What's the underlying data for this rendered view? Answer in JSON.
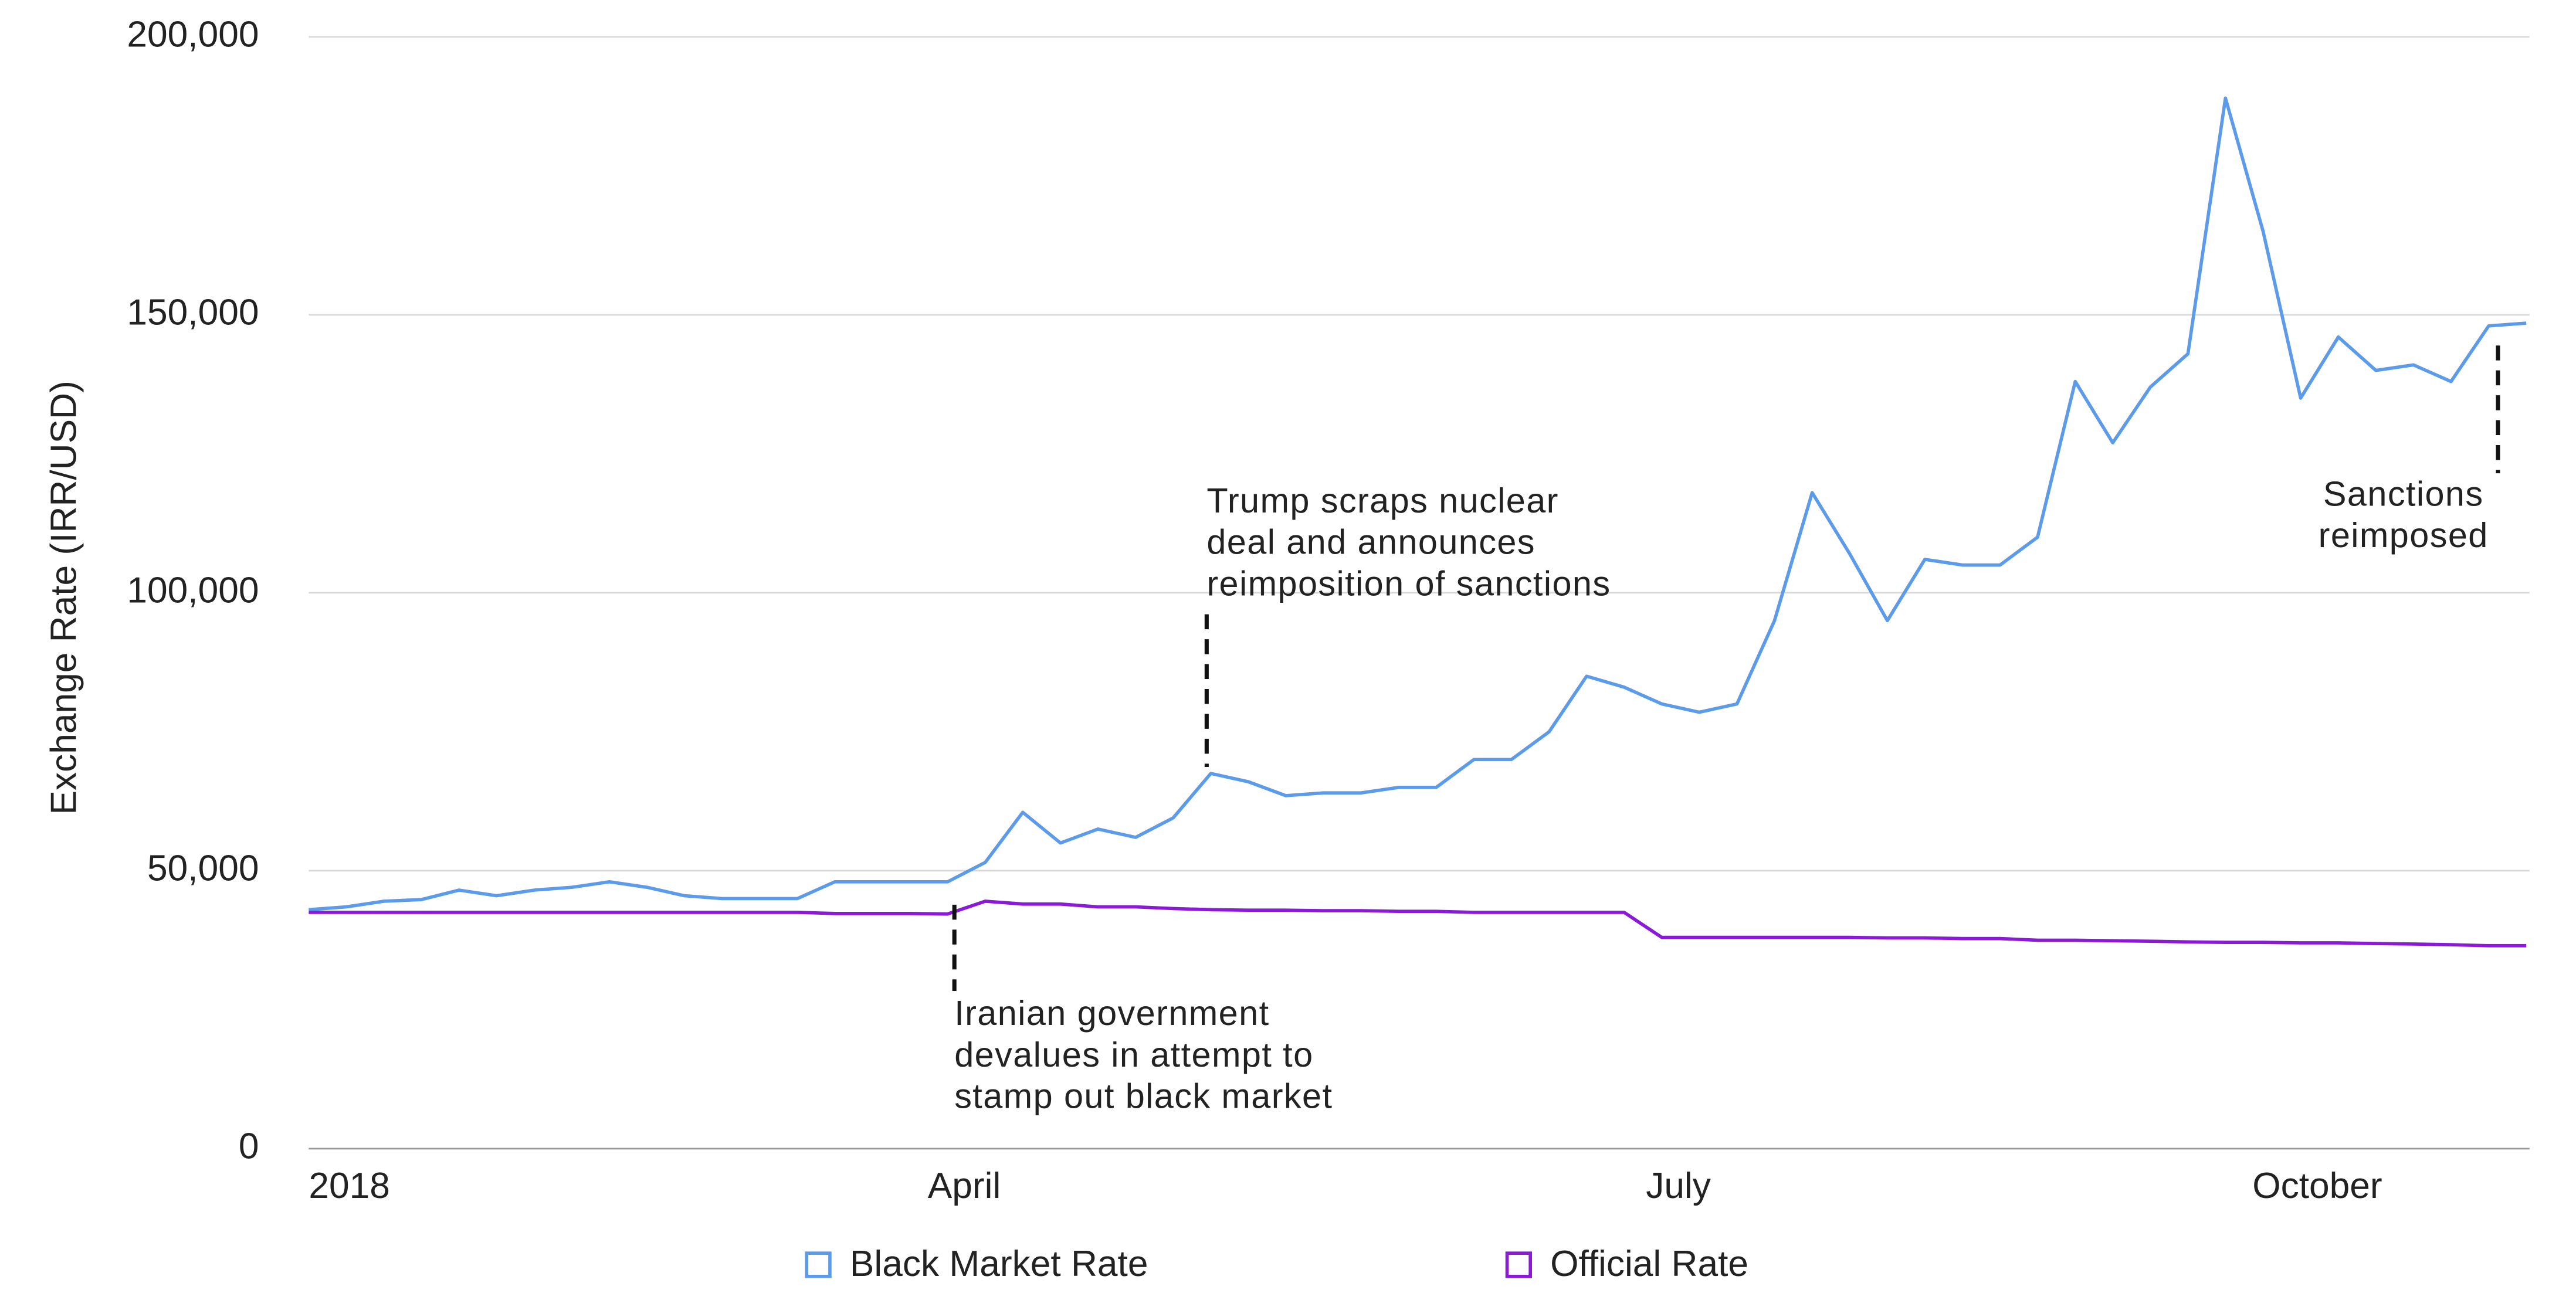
{
  "chart_data": {
    "type": "line",
    "y_label": "Exchange Rate (IRR/USD)",
    "categories": [
      "2018",
      null,
      null,
      null,
      null,
      null,
      null,
      null,
      null,
      null,
      null,
      null,
      null,
      null,
      null,
      null,
      null,
      "April",
      null,
      null,
      null,
      null,
      null,
      null,
      null,
      null,
      null,
      null,
      null,
      null,
      null,
      null,
      null,
      null,
      null,
      null,
      "July",
      null,
      null,
      null,
      null,
      null,
      null,
      null,
      null,
      null,
      null,
      null,
      null,
      null,
      null,
      null,
      null,
      "October",
      null,
      null,
      null,
      null,
      null,
      null
    ],
    "series": [
      {
        "name": "Black Market Rate",
        "color": "#5b9bea",
        "values": [
          43000,
          43500,
          44500,
          44800,
          46500,
          45500,
          46500,
          47000,
          48000,
          47000,
          45500,
          45000,
          45000,
          45000,
          48000,
          48000,
          48000,
          48000,
          51500,
          60500,
          55000,
          57500,
          56000,
          59500,
          67500,
          66000,
          63500,
          64000,
          64000,
          65000,
          65000,
          70000,
          70000,
          75000,
          85000,
          83000,
          80000,
          78500,
          80000,
          95000,
          118000,
          107000,
          95000,
          106000,
          105000,
          105000,
          110000,
          138000,
          127000,
          137000,
          143000,
          189000,
          165000,
          135000,
          146000,
          140000,
          141000,
          138000,
          148000,
          148500
        ]
      },
      {
        "name": "Official Rate",
        "color": "#8a1ad6",
        "values": [
          42500,
          42500,
          42500,
          42500,
          42500,
          42500,
          42500,
          42500,
          42500,
          42500,
          42500,
          42500,
          42500,
          42500,
          42300,
          42300,
          42300,
          42200,
          44500,
          44000,
          44000,
          43500,
          43500,
          43200,
          43000,
          42900,
          42900,
          42800,
          42800,
          42700,
          42700,
          42500,
          42500,
          42500,
          42500,
          42500,
          38000,
          38000,
          38000,
          38000,
          38000,
          38000,
          37900,
          37900,
          37800,
          37800,
          37500,
          37500,
          37400,
          37300,
          37200,
          37100,
          37100,
          37000,
          37000,
          36900,
          36800,
          36700,
          36500,
          36500
        ]
      }
    ],
    "ylim": [
      0,
      200000
    ],
    "yticks": [
      0,
      {
        "value": 50000,
        "label": "50,000"
      },
      {
        "value": 100000,
        "label": "100,000"
      },
      {
        "value": 150000,
        "label": "150,000"
      },
      {
        "value": 200000,
        "label": "200,000"
      }
    ],
    "grid": true,
    "legend": "bottom",
    "annotations": [
      {
        "lines": [
          "Iranian government",
          "devalues in attempt to",
          "stamp out black market"
        ]
      },
      {
        "lines": [
          "Trump scraps nuclear",
          "deal and announces",
          "reimposition of sanctions"
        ]
      },
      {
        "lines": [
          "Sanctions",
          "reimposed"
        ]
      }
    ]
  }
}
